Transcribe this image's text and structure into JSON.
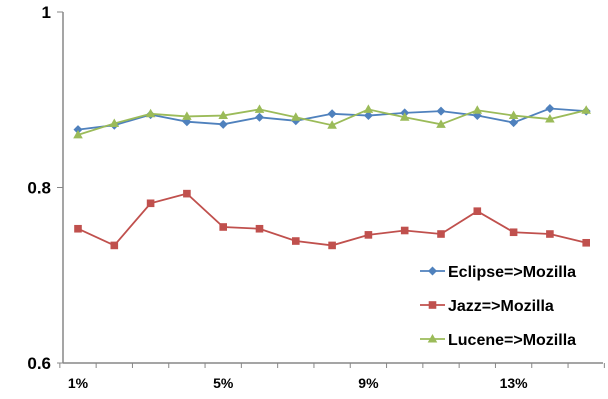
{
  "chart_data": {
    "type": "line",
    "x": [
      "1%",
      "2%",
      "3%",
      "4%",
      "5%",
      "6%",
      "7%",
      "8%",
      "9%",
      "10%",
      "11%",
      "12%",
      "13%",
      "14%",
      "15%"
    ],
    "x_tick_labels": [
      "1%",
      "5%",
      "9%",
      "13%"
    ],
    "y_tick_labels": [
      "0.6",
      "0.8",
      "1"
    ],
    "ylim": [
      0.6,
      1.0
    ],
    "grid": false,
    "legend_position": "right",
    "series": [
      {
        "name": "Eclipse=>Mozilla",
        "color": "#4F81BD",
        "marker": "diamond",
        "values": [
          0.866,
          0.871,
          0.883,
          0.875,
          0.872,
          0.88,
          0.876,
          0.884,
          0.882,
          0.885,
          0.887,
          0.882,
          0.874,
          0.89,
          0.887
        ]
      },
      {
        "name": "Jazz=>Mozilla",
        "color": "#C0504D",
        "marker": "square",
        "values": [
          0.753,
          0.734,
          0.782,
          0.793,
          0.755,
          0.753,
          0.739,
          0.734,
          0.746,
          0.751,
          0.747,
          0.773,
          0.749,
          0.747,
          0.737
        ]
      },
      {
        "name": "Lucene=>Mozilla",
        "color": "#9BBB59",
        "marker": "triangle",
        "values": [
          0.86,
          0.873,
          0.884,
          0.881,
          0.882,
          0.889,
          0.88,
          0.871,
          0.889,
          0.88,
          0.872,
          0.888,
          0.882,
          0.878,
          0.888
        ]
      }
    ]
  }
}
